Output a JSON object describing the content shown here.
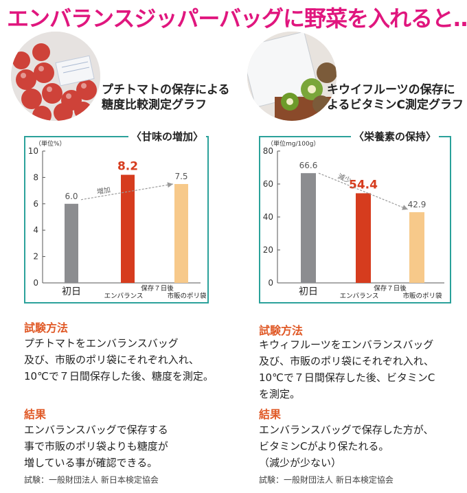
{
  "title": "エンバランスジッパーバッグに野菜を入れると…",
  "left": {
    "caption_line1": "プチトマトの保存による",
    "caption_line2": "糖度比較測定グラフ",
    "method_heading": "試験方法",
    "method_lines": [
      "プチトマトをエンバランスバッグ",
      "及び、市販のポリ袋にそれぞれ入れ、",
      "10℃で７日間保存した後、糖度を測定。"
    ],
    "result_heading": "結果",
    "result_lines": [
      "エンバランスバッグで保存する",
      "事で市販のポリ袋よりも糖度が",
      "増している事が確認できる。"
    ],
    "credit": "試験：一般財団法人 新日本検定協会"
  },
  "right": {
    "caption_line1": "キウイフルーツの保存に",
    "caption_line2": "よるビタミンC測定グラフ",
    "method_heading": "試験方法",
    "method_lines": [
      "キウィフルーツをエンバランスバッグ",
      "及び、市販のポリ袋にそれぞれ入れ、",
      "10℃で７日間保存した後、ビタミンC",
      "を測定。"
    ],
    "result_heading": "結果",
    "result_lines": [
      "エンバランスバッグで保存した方が、",
      "ビタミンCがより保たれる。",
      "（減少が少ない）"
    ],
    "credit": "試験：一般財団法人 新日本検定協会"
  },
  "chart_data": [
    {
      "type": "bar",
      "title": "〈甘味の増加〉",
      "unit_label": "（単位%）",
      "categories": [
        "初日",
        "エンバランス",
        "市販のポリ袋"
      ],
      "group_label": "保存７日後",
      "values": [
        6.0,
        8.2,
        7.5
      ],
      "value_labels": [
        "6.0",
        "8.2",
        "7.5"
      ],
      "yticks": [
        "0",
        "2",
        "4",
        "6",
        "8",
        "10"
      ],
      "ylim": [
        0,
        10
      ],
      "annotation": "増加",
      "colors": [
        "#8c8d90",
        "#d63c1e",
        "#f7c98a"
      ],
      "highlight_color": "#d63c1e",
      "grid": false
    },
    {
      "type": "bar",
      "title": "〈栄養素の保持〉",
      "unit_label": "（単位mg/100g）",
      "categories": [
        "初日",
        "エンバランス",
        "市販のポリ袋"
      ],
      "group_label": "保存７日後",
      "values": [
        66.6,
        54.4,
        42.9
      ],
      "value_labels": [
        "66.6",
        "54.4",
        "42.9"
      ],
      "yticks": [
        "0",
        "20",
        "40",
        "60",
        "80"
      ],
      "ylim": [
        0,
        80
      ],
      "annotation": "減少",
      "colors": [
        "#8c8d90",
        "#d63c1e",
        "#f7c98a"
      ],
      "highlight_color": "#d63c1e",
      "grid": false
    }
  ]
}
